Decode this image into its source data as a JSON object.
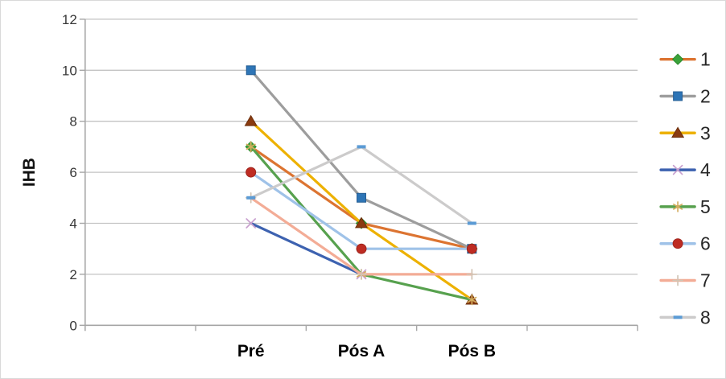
{
  "chart_data": {
    "type": "line",
    "title": "",
    "ylabel": "IHB",
    "categories": [
      "Pré",
      "Pós A",
      "Pós B"
    ],
    "y_ticks": [
      0,
      2,
      4,
      6,
      8,
      10,
      12
    ],
    "ylim": [
      0,
      12
    ],
    "grid": true,
    "legend_position": "right",
    "series": [
      {
        "name": "1",
        "values": [
          7,
          4,
          3
        ],
        "line_color": "#DC7431",
        "marker": "diamond",
        "marker_color": "#3AA23A",
        "marker_edge": "#2E8B2E"
      },
      {
        "name": "2",
        "values": [
          10,
          5,
          3
        ],
        "line_color": "#9D9D9D",
        "marker": "square",
        "marker_color": "#2E75B6",
        "marker_edge": "#255E94"
      },
      {
        "name": "3",
        "values": [
          8,
          4,
          1
        ],
        "line_color": "#EDB100",
        "marker": "triangle",
        "marker_color": "#8A3B10",
        "marker_edge": "#6E300C"
      },
      {
        "name": "4",
        "values": [
          4,
          2,
          null
        ],
        "line_color": "#3D62B0",
        "marker": "x",
        "marker_color": "#C9A0CF",
        "marker_edge": "#C9A0CF"
      },
      {
        "name": "5",
        "values": [
          7,
          2,
          1
        ],
        "line_color": "#57A14E",
        "marker": "asterisk",
        "marker_color": "#D3AC5E",
        "marker_edge": "#D3AC5E"
      },
      {
        "name": "6",
        "values": [
          6,
          3,
          3
        ],
        "line_color": "#9FC2E8",
        "marker": "circle",
        "marker_color": "#BE2C23",
        "marker_edge": "#9E241C"
      },
      {
        "name": "7",
        "values": [
          5,
          2,
          2
        ],
        "line_color": "#F3AC96",
        "marker": "plus",
        "marker_color": "#D2C4B4",
        "marker_edge": "#D2C4B4"
      },
      {
        "name": "8",
        "values": [
          5,
          7,
          4
        ],
        "line_color": "#CCCBCB",
        "marker": "dash",
        "marker_color": "#5B9BD5",
        "marker_edge": "#5B9BD5"
      }
    ],
    "colors": {
      "gridline": "#C3C3C3",
      "axis": "#A6A6A6",
      "background": "#FFFFFF",
      "frame_border": "#D9D9D9"
    }
  }
}
